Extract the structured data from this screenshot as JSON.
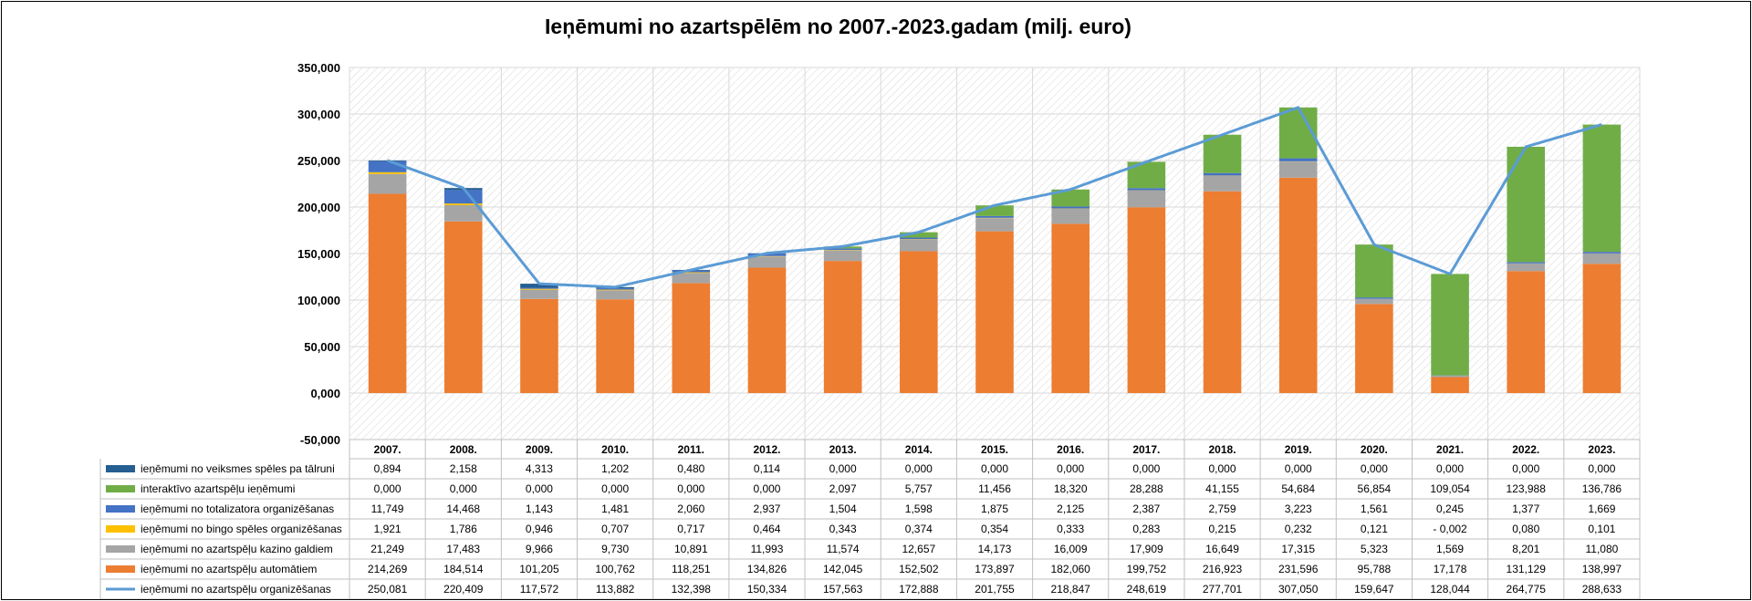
{
  "chart_data": {
    "type": "bar",
    "title": "Ieņēmumi no azartspēlēm no 2007.-2023.gadam (milj. euro)",
    "categories": [
      "2007.",
      "2008.",
      "2009.",
      "2010.",
      "2011.",
      "2012.",
      "2013.",
      "2014.",
      "2015.",
      "2016.",
      "2017.",
      "2018.",
      "2019.",
      "2020.",
      "2021.",
      "2022.",
      "2023."
    ],
    "ylim": [
      -50,
      350
    ],
    "yticks": [
      -50,
      0,
      50,
      100,
      150,
      200,
      250,
      300,
      350
    ],
    "ytick_labels": [
      "-50,000",
      "0,000",
      "50,000",
      "100,000",
      "150,000",
      "200,000",
      "250,000",
      "300,000",
      "350,000"
    ],
    "stacked": true,
    "grid": true,
    "legend_placement": "data-table-left",
    "series": [
      {
        "name": "ieņēmumi no veiksmes spēles pa tālruni",
        "kind": "bar",
        "color": "#255e91",
        "values": [
          0.894,
          2.158,
          4.313,
          1.202,
          0.48,
          0.114,
          0,
          0,
          0,
          0,
          0,
          0,
          0,
          0,
          0,
          0,
          0
        ],
        "labels": [
          "0,894",
          "2,158",
          "4,313",
          "1,202",
          "0,480",
          "0,114",
          "0,000",
          "0,000",
          "0,000",
          "0,000",
          "0,000",
          "0,000",
          "0,000",
          "0,000",
          "0,000",
          "0,000",
          "0,000"
        ]
      },
      {
        "name": "interaktīvo azartspēļu  ieņēmumi",
        "kind": "bar",
        "color": "#70ad47",
        "values": [
          0,
          0,
          0,
          0,
          0,
          0,
          2.097,
          5.757,
          11.456,
          18.32,
          28.288,
          41.155,
          54.684,
          56.854,
          109.054,
          123.988,
          136.786
        ],
        "labels": [
          "0,000",
          "0,000",
          "0,000",
          "0,000",
          "0,000",
          "0,000",
          "2,097",
          "5,757",
          "11,456",
          "18,320",
          "28,288",
          "41,155",
          "54,684",
          "56,854",
          "109,054",
          "123,988",
          "136,786"
        ]
      },
      {
        "name": "ieņēmumi no totalizatora organizēšanas",
        "kind": "bar",
        "color": "#4472c4",
        "values": [
          11.749,
          14.468,
          1.143,
          1.481,
          2.06,
          2.937,
          1.504,
          1.598,
          1.875,
          2.125,
          2.387,
          2.759,
          3.223,
          1.561,
          0.245,
          1.377,
          1.669
        ],
        "labels": [
          "11,749",
          "14,468",
          "1,143",
          "1,481",
          "2,060",
          "2,937",
          "1,504",
          "1,598",
          "1,875",
          "2,125",
          "2,387",
          "2,759",
          "3,223",
          "1,561",
          "0,245",
          "1,377",
          "1,669"
        ]
      },
      {
        "name": "ieņēmumi no bingo spēles organizēšanas",
        "kind": "bar",
        "color": "#ffc000",
        "values": [
          1.921,
          1.786,
          0.946,
          0.707,
          0.717,
          0.464,
          0.343,
          0.374,
          0.354,
          0.333,
          0.283,
          0.215,
          0.232,
          0.121,
          -0.002,
          0.08,
          0.101
        ],
        "labels": [
          "1,921",
          "1,786",
          "0,946",
          "0,707",
          "0,717",
          "0,464",
          "0,343",
          "0,374",
          "0,354",
          "0,333",
          "0,283",
          "0,215",
          "0,232",
          "0,121",
          "- 0,002",
          "0,080",
          "0,101"
        ]
      },
      {
        "name": "ieņēmumi no azartspēļu kazino galdiem",
        "kind": "bar",
        "color": "#a5a5a5",
        "values": [
          21.249,
          17.483,
          9.966,
          9.73,
          10.891,
          11.993,
          11.574,
          12.657,
          14.173,
          16.009,
          17.909,
          16.649,
          17.315,
          5.323,
          1.569,
          8.201,
          11.08
        ],
        "labels": [
          "21,249",
          "17,483",
          "9,966",
          "9,730",
          "10,891",
          "11,993",
          "11,574",
          "12,657",
          "14,173",
          "16,009",
          "17,909",
          "16,649",
          "17,315",
          "5,323",
          "1,569",
          "8,201",
          "11,080"
        ]
      },
      {
        "name": "ieņēmumi no azartspēļu automātiem",
        "kind": "bar",
        "color": "#ed7d31",
        "values": [
          214.269,
          184.514,
          101.205,
          100.762,
          118.251,
          134.826,
          142.045,
          152.502,
          173.897,
          182.06,
          199.752,
          216.923,
          231.596,
          95.788,
          17.178,
          131.129,
          138.997
        ],
        "labels": [
          "214,269",
          "184,514",
          "101,205",
          "100,762",
          "118,251",
          "134,826",
          "142,045",
          "152,502",
          "173,897",
          "182,060",
          "199,752",
          "216,923",
          "231,596",
          "95,788",
          "17,178",
          "131,129",
          "138,997"
        ]
      },
      {
        "name": "ieņēmumi no azartspēļu organizēšanas",
        "kind": "line",
        "color": "#5b9bd5",
        "values": [
          250.081,
          220.409,
          117.572,
          113.882,
          132.398,
          150.334,
          157.563,
          172.888,
          201.755,
          218.847,
          248.619,
          277.701,
          307.05,
          159.647,
          128.044,
          264.775,
          288.633
        ],
        "labels": [
          "250,081",
          "220,409",
          "117,572",
          "113,882",
          "132,398",
          "150,334",
          "157,563",
          "172,888",
          "201,755",
          "218,847",
          "248,619",
          "277,701",
          "307,050",
          "159,647",
          "128,044",
          "264,775",
          "288,633"
        ]
      }
    ]
  }
}
